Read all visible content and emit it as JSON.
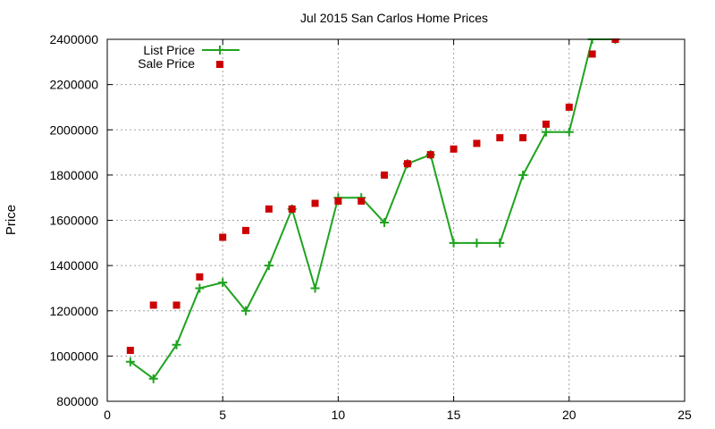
{
  "chart_data": {
    "type": "line",
    "title": "Jul 2015 San Carlos Home Prices",
    "xlabel": "",
    "ylabel": "Price",
    "xlim": [
      0,
      25
    ],
    "ylim": [
      800000,
      2400000
    ],
    "x_ticks": [
      0,
      5,
      10,
      15,
      20,
      25
    ],
    "y_ticks": [
      800000,
      1000000,
      1200000,
      1400000,
      1600000,
      1800000,
      2000000,
      2200000,
      2400000
    ],
    "grid": true,
    "legend_position": "top-left",
    "series": [
      {
        "name": "List Price",
        "style": "line-plus",
        "color": "#1fa31f",
        "x": [
          1,
          2,
          3,
          4,
          5,
          6,
          7,
          8,
          9,
          10,
          11,
          12,
          13,
          14,
          15,
          16,
          17,
          18,
          19,
          20,
          21,
          22
        ],
        "y": [
          975000,
          900000,
          1050000,
          1300000,
          1325000,
          1200000,
          1400000,
          1650000,
          1300000,
          1700000,
          1700000,
          1590000,
          1850000,
          1890000,
          1500000,
          1500000,
          1500000,
          1800000,
          1990000,
          1990000,
          2400000,
          2400000
        ]
      },
      {
        "name": "Sale Price",
        "style": "square-markers",
        "color": "#cc0000",
        "x": [
          1,
          2,
          3,
          4,
          5,
          6,
          7,
          8,
          9,
          10,
          11,
          12,
          13,
          14,
          15,
          16,
          17,
          18,
          19,
          20,
          21,
          22
        ],
        "y": [
          1025000,
          1225000,
          1225000,
          1350000,
          1525000,
          1555000,
          1650000,
          1650000,
          1675000,
          1685000,
          1685000,
          1800000,
          1850000,
          1890000,
          1915000,
          1940000,
          1965000,
          1965000,
          2025000,
          2100000,
          2335000,
          2400000
        ]
      }
    ]
  }
}
